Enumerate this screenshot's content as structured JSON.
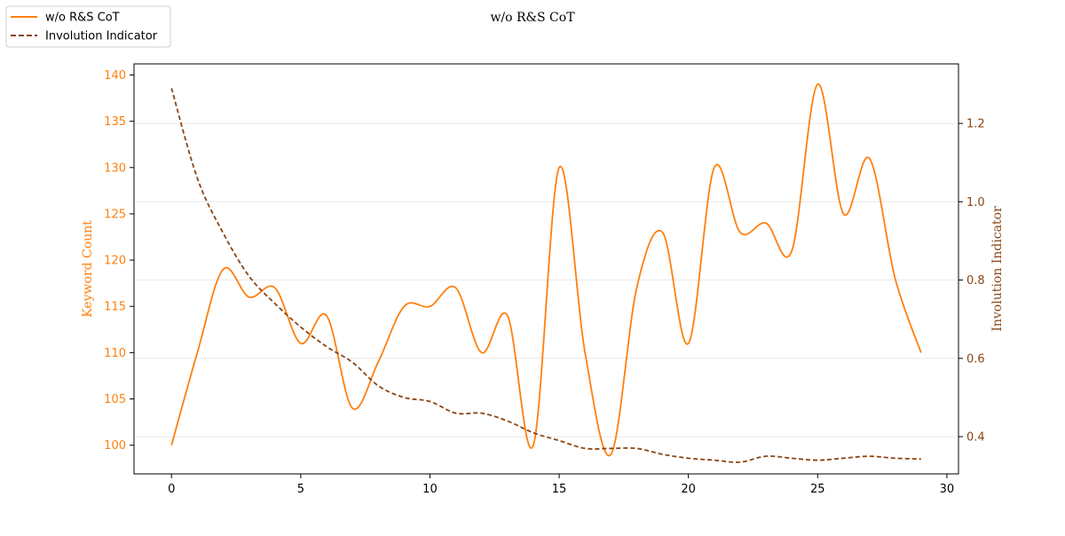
{
  "chart_data": {
    "type": "line",
    "title": "w/o R&S CoT",
    "xlabel": "",
    "ylabel": "Keyword Count",
    "y2label": "Involution Indicator",
    "xlim": [
      -1.45,
      30.45
    ],
    "ylim": [
      96.9,
      141.2
    ],
    "y2lim": [
      0.305,
      1.352
    ],
    "xticks": [
      0,
      5,
      10,
      15,
      20,
      25,
      30
    ],
    "yticks": [
      100,
      105,
      110,
      115,
      120,
      125,
      130,
      135,
      140
    ],
    "y2ticks": [
      0.4,
      0.6,
      0.8,
      1.0,
      1.2
    ],
    "y2tick_labels": [
      "0.4",
      "0.6",
      "0.8",
      "1.0",
      "1.2"
    ],
    "grid": "horizontal, right axis",
    "legend_position": "top-left",
    "series": [
      {
        "name": "w/o R&S CoT",
        "axis": "left",
        "style": "solid",
        "color": "#ff7f0e",
        "x": [
          0,
          1,
          2,
          3,
          4,
          5,
          6,
          7,
          8,
          9,
          10,
          11,
          12,
          13,
          14,
          15,
          16,
          17,
          18,
          19,
          20,
          21,
          22,
          23,
          24,
          25,
          26,
          27,
          28,
          29
        ],
        "values": [
          100,
          110,
          119,
          116,
          117,
          111,
          114,
          104,
          109,
          115,
          115,
          117,
          110,
          114,
          100,
          130,
          110,
          99,
          117,
          123,
          111,
          130,
          123,
          124,
          121,
          139,
          125,
          131,
          118,
          110
        ]
      },
      {
        "name": "Involution Indicator",
        "axis": "right",
        "style": "dashed",
        "color": "#8b4513",
        "x": [
          0,
          1,
          2,
          3,
          4,
          5,
          6,
          7,
          8,
          9,
          10,
          11,
          12,
          13,
          14,
          15,
          16,
          17,
          18,
          19,
          20,
          21,
          22,
          23,
          24,
          25,
          26,
          27,
          28,
          29
        ],
        "values": [
          1.29,
          1.06,
          0.92,
          0.81,
          0.74,
          0.68,
          0.63,
          0.59,
          0.53,
          0.5,
          0.49,
          0.46,
          0.46,
          0.44,
          0.41,
          0.39,
          0.37,
          0.37,
          0.37,
          0.355,
          0.345,
          0.34,
          0.335,
          0.35,
          0.345,
          0.34,
          0.345,
          0.35,
          0.345,
          0.343
        ]
      }
    ]
  },
  "colors": {
    "left_axis": "#ff7f0e",
    "right_axis": "#8b4513",
    "grid": "#e6e6e6"
  }
}
